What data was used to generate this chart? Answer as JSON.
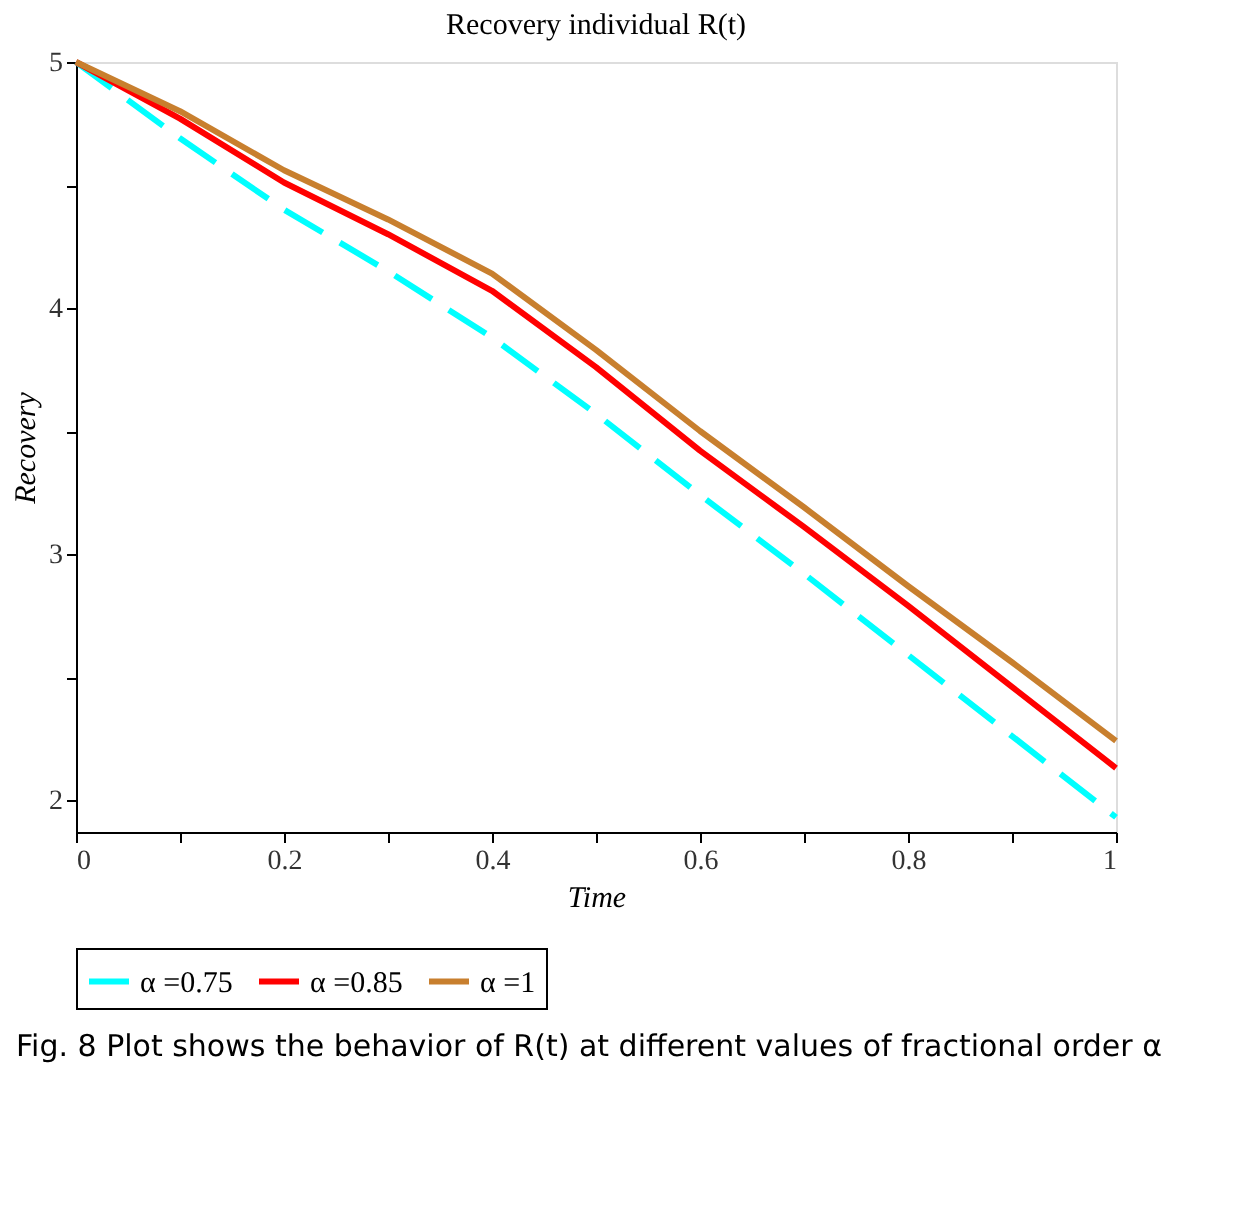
{
  "chart_data": {
    "type": "line",
    "title": "Recovery individual R(t)",
    "xlabel": "Time",
    "ylabel": "Recovery",
    "x": [
      0,
      0.1,
      0.2,
      0.3,
      0.4,
      0.5,
      0.6,
      0.7,
      0.8,
      0.9,
      1
    ],
    "series": [
      {
        "name": "α =0.75",
        "color": "#00ffff",
        "line_style": "dashed",
        "values": [
          5,
          4.69,
          4.4,
          4.15,
          3.88,
          3.57,
          3.24,
          2.92,
          2.59,
          2.26,
          1.93
        ]
      },
      {
        "name": "α =0.85",
        "color": "#ff0000",
        "line_style": "solid",
        "values": [
          5,
          4.77,
          4.51,
          4.3,
          4.07,
          3.76,
          3.42,
          3.11,
          2.79,
          2.46,
          2.13
        ]
      },
      {
        "name": "α =1",
        "color": "#c87f2e",
        "line_style": "solid",
        "values": [
          5,
          4.8,
          4.56,
          4.36,
          4.14,
          3.83,
          3.5,
          3.19,
          2.87,
          2.56,
          2.24
        ]
      }
    ],
    "xlim": [
      0,
      1
    ],
    "ylim": [
      1.87,
      5
    ],
    "xticks": [
      0,
      {
        "value": 0.1,
        "label": null
      },
      0.2,
      {
        "value": 0.3,
        "label": null
      },
      0.4,
      {
        "value": 0.5,
        "label": null
      },
      0.6,
      {
        "value": 0.7,
        "label": null
      },
      0.8,
      {
        "value": 0.9,
        "label": null
      },
      1
    ],
    "yticks": [
      2,
      {
        "value": 2.5,
        "label": null
      },
      3,
      {
        "value": 3.5,
        "label": null
      },
      4,
      {
        "value": 4.5,
        "label": null
      },
      5
    ],
    "grid": false,
    "legend": "bottom",
    "marker": "none",
    "annotations": [
      "Fig. 8  Plot shows the behavior of R(t) at different values of fractional order α"
    ]
  }
}
